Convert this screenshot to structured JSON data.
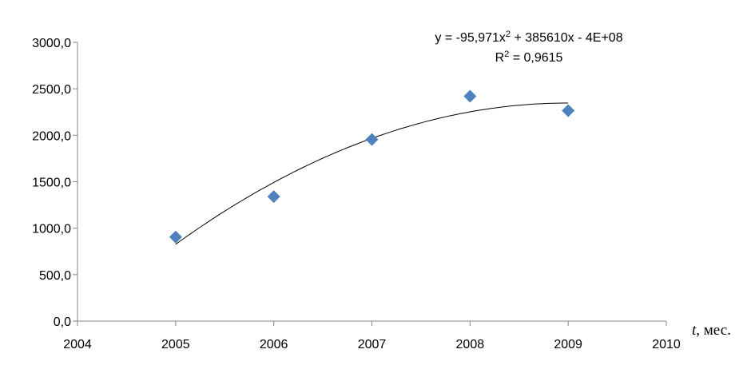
{
  "chart_data": {
    "type": "scatter",
    "title": "",
    "xlabel_var": "t",
    "xlabel_unit": ", мес.",
    "ylabel": "",
    "xlim": [
      2004,
      2010
    ],
    "ylim": [
      0,
      3000
    ],
    "x_ticks": [
      "2004",
      "2005",
      "2006",
      "2007",
      "2008",
      "2009",
      "2010"
    ],
    "y_ticks": [
      "0,0",
      "500,0",
      "1000,0",
      "1500,0",
      "2000,0",
      "2500,0",
      "3000,0"
    ],
    "x_tick_values": [
      2004,
      2005,
      2006,
      2007,
      2008,
      2009,
      2010
    ],
    "y_tick_values": [
      0,
      500,
      1000,
      1500,
      2000,
      2500,
      3000
    ],
    "grid": false,
    "series": [
      {
        "name": "data",
        "x": [
          2005,
          2006,
          2007,
          2008,
          2009
        ],
        "y": [
          905,
          1340,
          1955,
          2420,
          2265
        ],
        "color": "#4F81BD",
        "marker": "diamond"
      }
    ],
    "trendline": {
      "type": "polynomial-2",
      "color": "#000000",
      "equation_prefix": "y = -95,971x",
      "equation_sup": "2",
      "equation_suffix": " + 385610x - 4E+08",
      "r2_prefix": "R",
      "r2_sup": "2",
      "r2_suffix": " = 0,9615"
    }
  }
}
